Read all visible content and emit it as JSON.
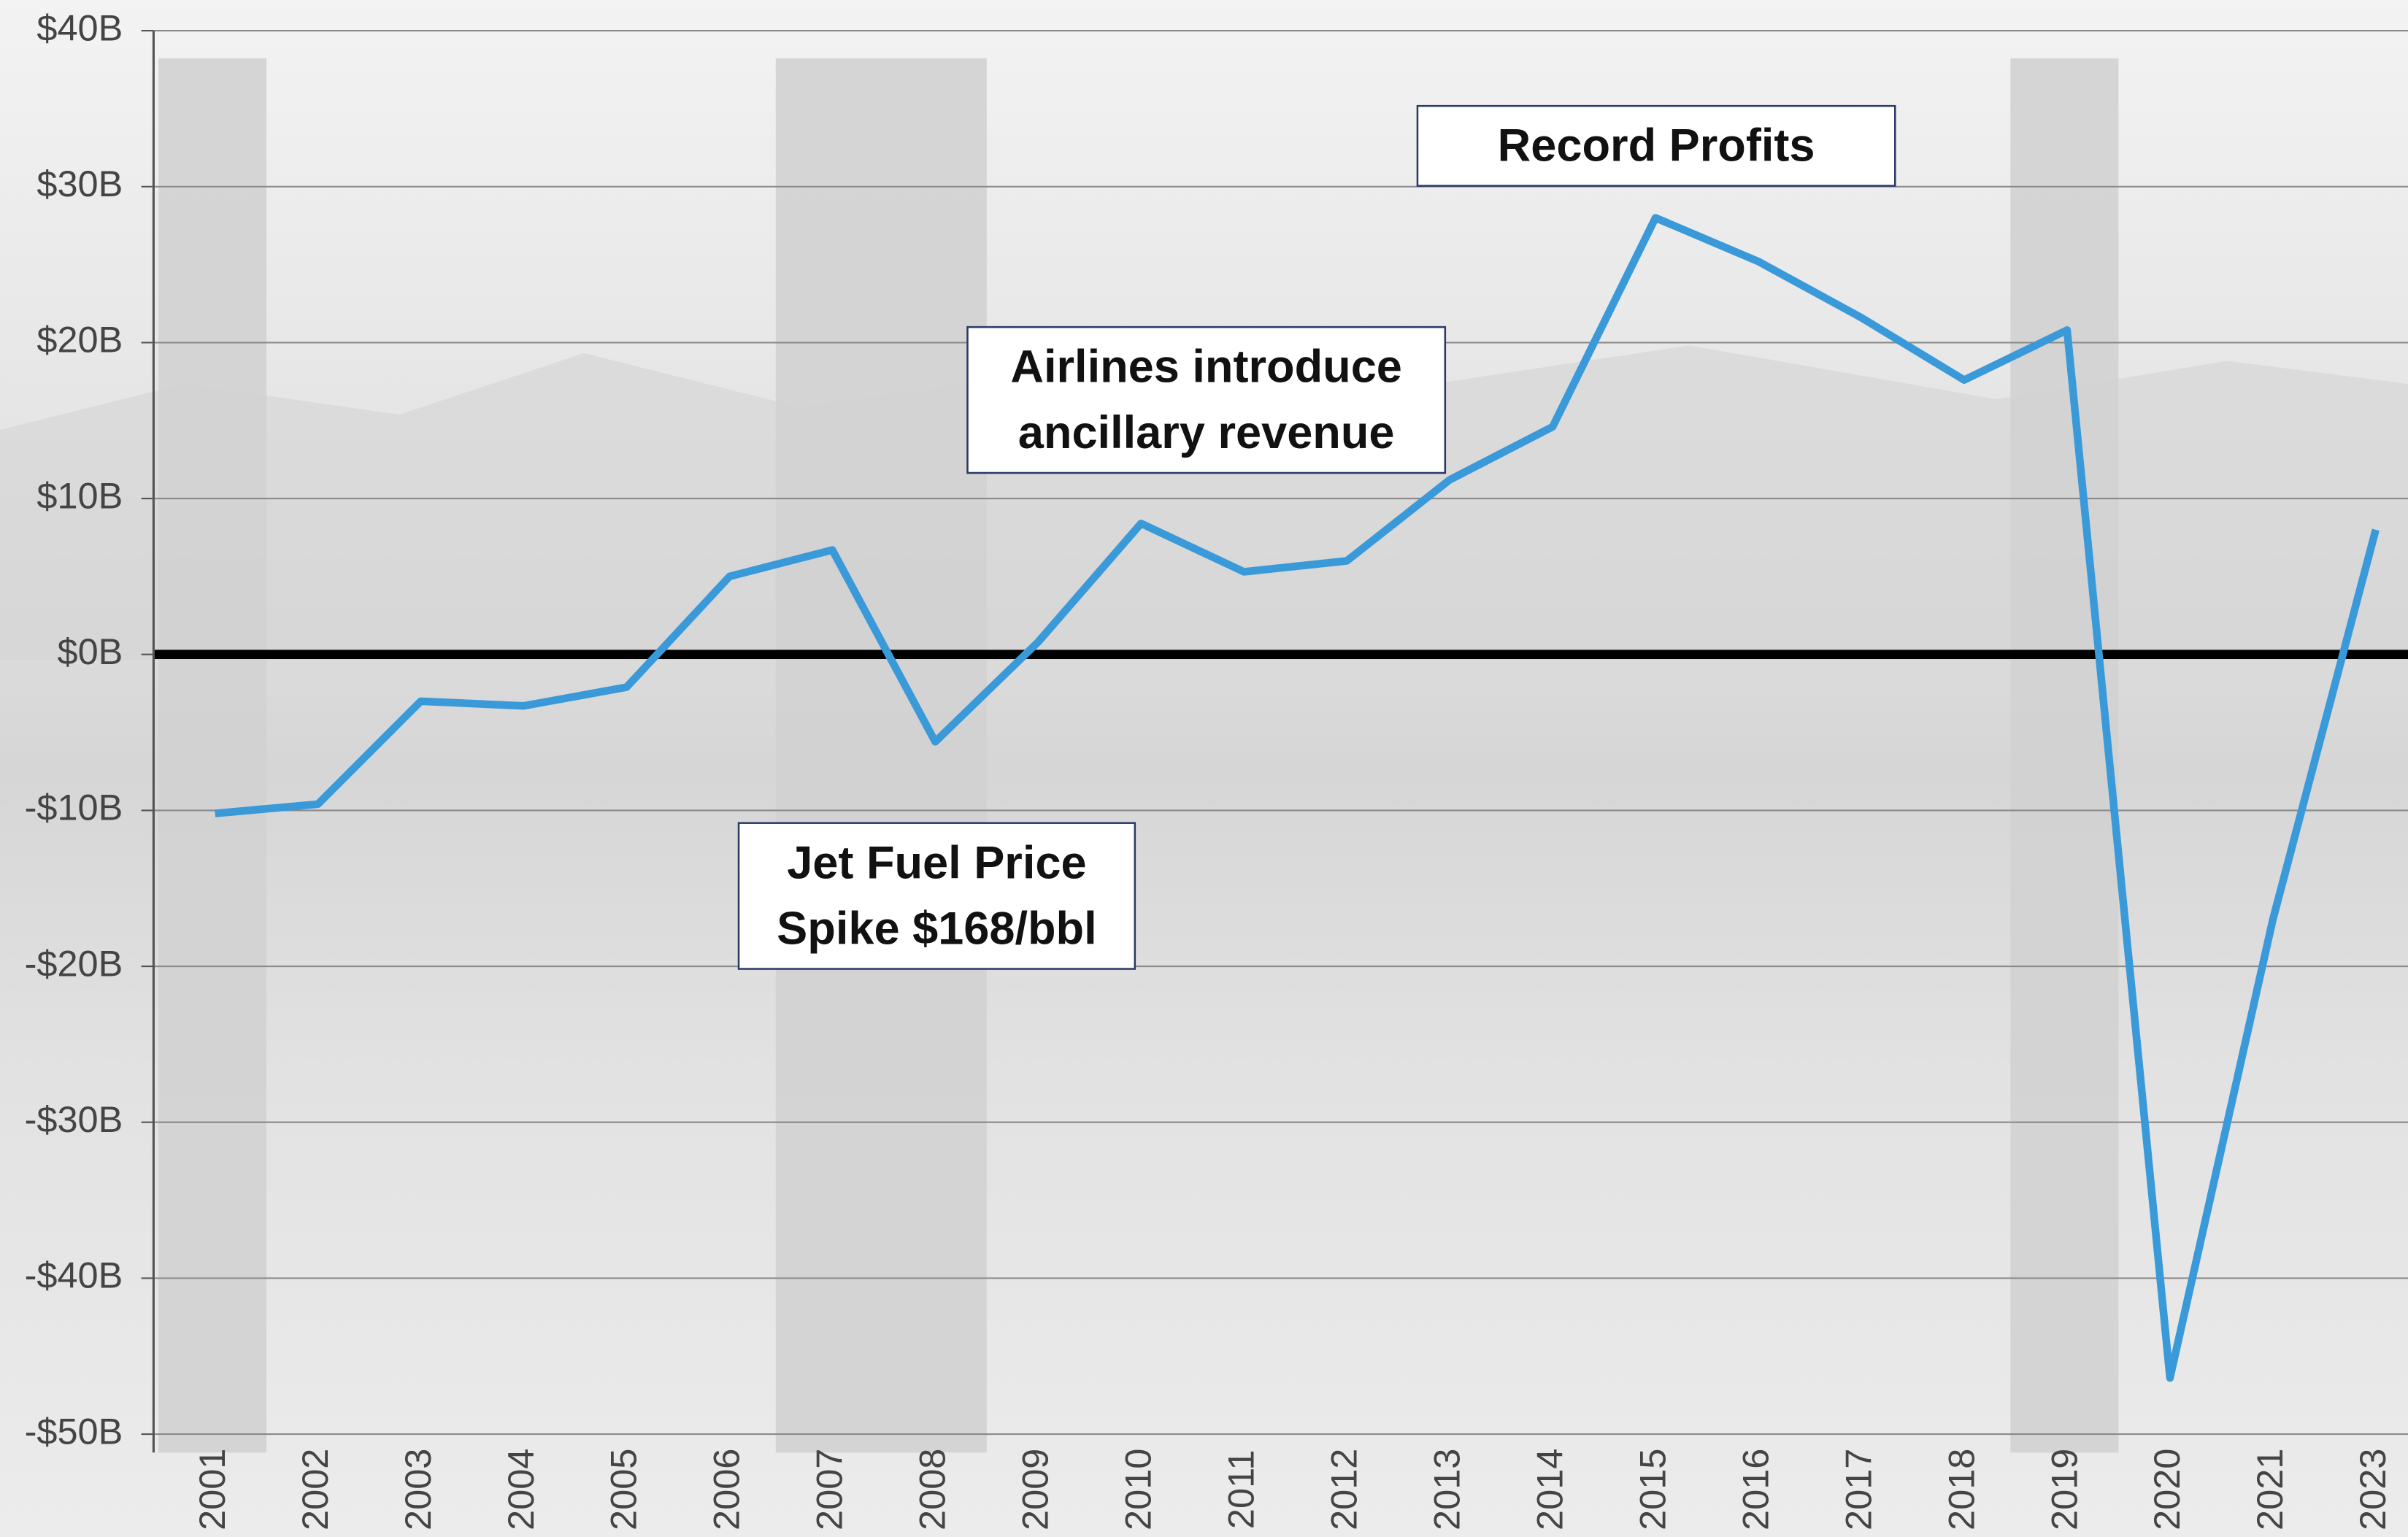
{
  "chart_data": {
    "type": "line",
    "categories": [
      "2001",
      "2002",
      "2003",
      "2004",
      "2005",
      "2006",
      "2007",
      "2008",
      "2009",
      "2010",
      "2011",
      "2012",
      "2013",
      "2014",
      "2015",
      "2016",
      "2017",
      "2018",
      "2019",
      "2020",
      "2021",
      "2023"
    ],
    "series": [
      {
        "color": "#3a9ad9",
        "values": [
          -10.2,
          -9.6,
          -3.0,
          -3.3,
          -2.1,
          5.0,
          6.7,
          -5.6,
          0.8,
          8.4,
          5.3,
          6.0,
          11.2,
          14.6,
          28.0,
          25.2,
          21.6,
          17.6,
          20.8,
          -46.4,
          -17.0,
          8.0
        ]
      }
    ],
    "ylim": [
      -50,
      40
    ],
    "yticks": [
      {
        "value": -50,
        "label": "-$50B"
      },
      {
        "value": -40,
        "label": "-$40B"
      },
      {
        "value": -30,
        "label": "-$30B"
      },
      {
        "value": -20,
        "label": "-$20B"
      },
      {
        "value": -10,
        "label": "-$10B"
      },
      {
        "value": 0,
        "label": "$0B"
      },
      {
        "value": 10,
        "label": "$10B"
      },
      {
        "value": 20,
        "label": "$20B"
      },
      {
        "value": 30,
        "label": "$30B"
      },
      {
        "value": 40,
        "label": "$40B"
      }
    ],
    "grid": true,
    "shaded_periods": [
      [
        "2001",
        "2001"
      ],
      [
        "2007",
        "2008"
      ],
      [
        "2019",
        "2019"
      ]
    ],
    "annotations": [
      {
        "lines": [
          "Record Profits"
        ]
      },
      {
        "lines": [
          "Airlines introduce",
          "ancillary revenue"
        ]
      },
      {
        "lines": [
          "Jet Fuel Price",
          "Spike $168/bbl"
        ]
      }
    ]
  }
}
